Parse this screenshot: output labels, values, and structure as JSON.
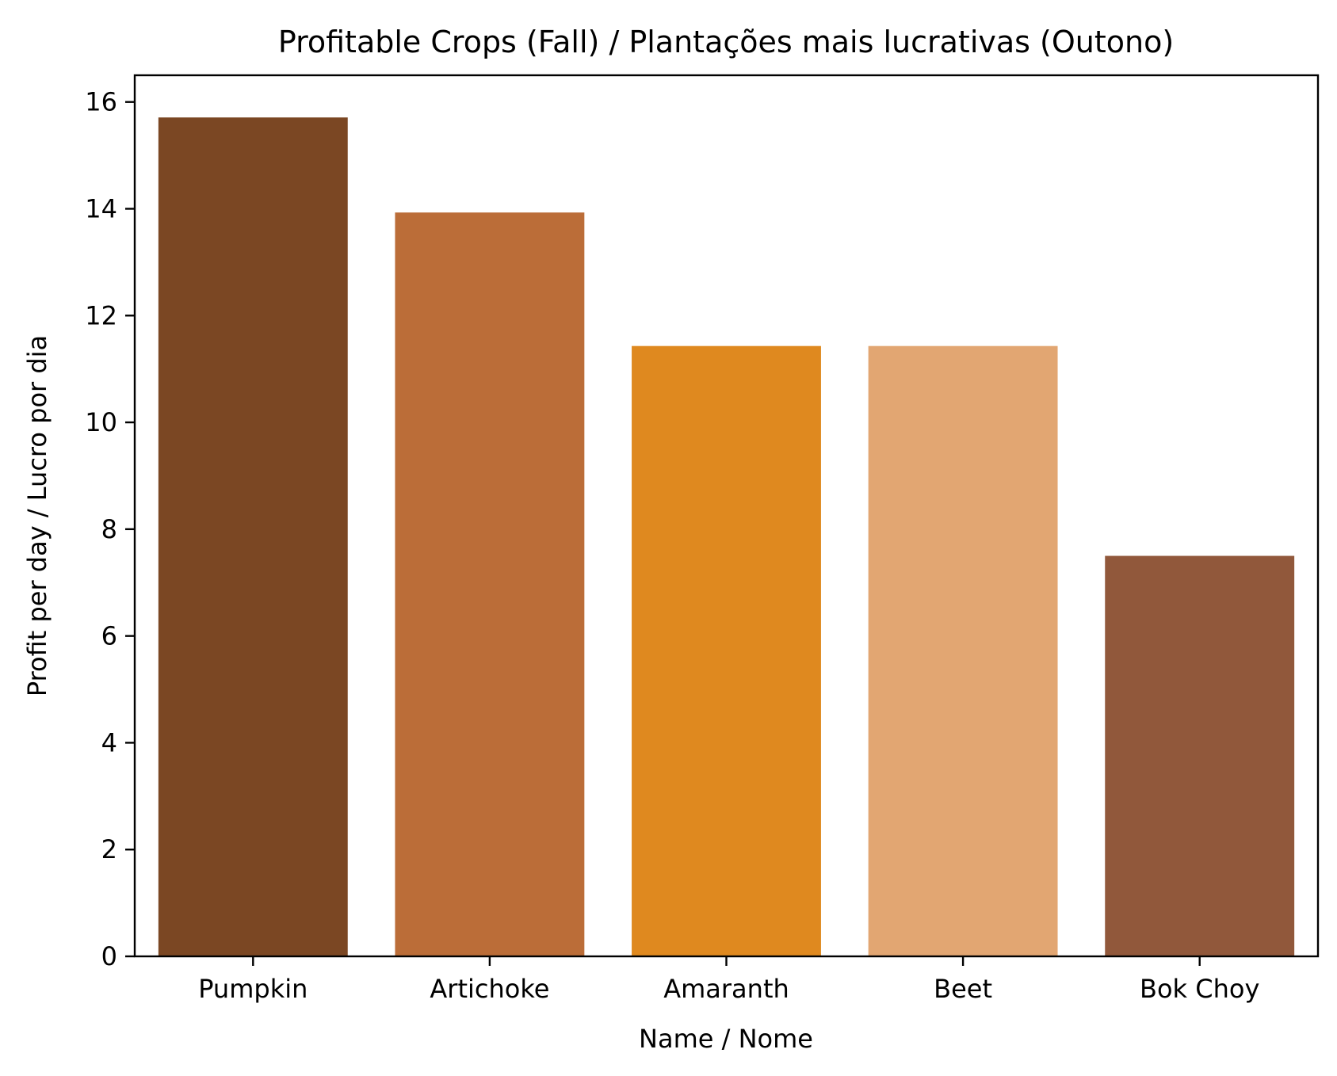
{
  "chart_data": {
    "type": "bar",
    "title": "Profitable Crops (Fall) / Plantações mais lucrativas (Outono)",
    "xlabel": "Name / Nome",
    "ylabel": "Profit per day / Lucro por dia",
    "categories": [
      "Pumpkin",
      "Artichoke",
      "Amaranth",
      "Beet",
      "Bok Choy"
    ],
    "values": [
      15.71,
      13.93,
      11.43,
      11.43,
      7.5
    ],
    "colors": [
      "#7b4723",
      "#bb6d38",
      "#df891f",
      "#e2a672",
      "#91583b"
    ],
    "ylim": [
      0,
      16.5
    ],
    "yticks": [
      0,
      2,
      4,
      6,
      8,
      10,
      12,
      14,
      16
    ],
    "grid": false,
    "legend": "none"
  }
}
